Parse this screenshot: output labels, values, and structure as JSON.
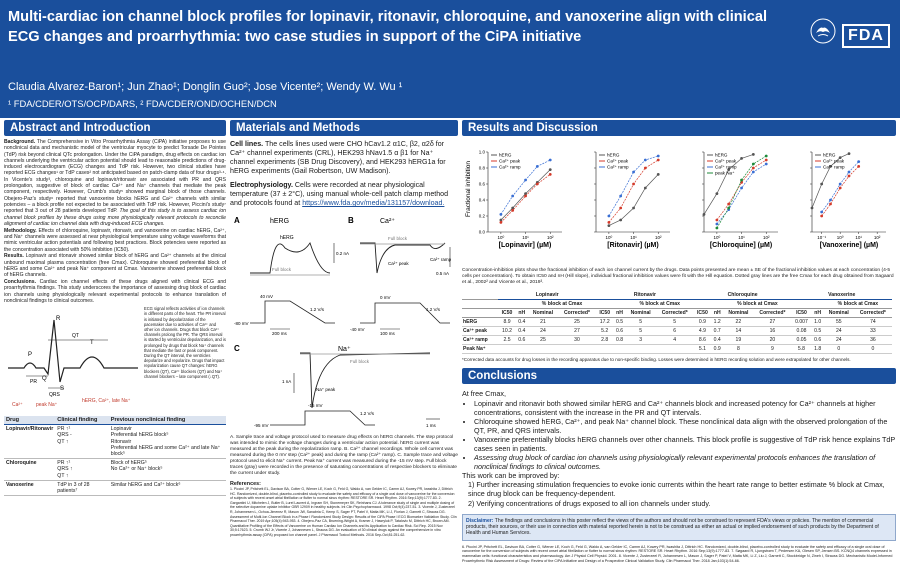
{
  "header": {
    "title": "Multi-cardiac ion channel block profiles for lopinavir, ritonavir, chloroquine, and vanoxerine align with clinical ECG changes and proarrhythmia: two case studies in support of the CiPA initiative",
    "authors": "Claudia Alvarez-Baron¹; Jun Zhao¹; Donglin Guo²; Jose Vicente²; Wendy W. Wu ¹",
    "affiliations": "¹ FDA/CDER/OTS/OCP/DARS, ² FDA/CDER/OND/OCHEN/DCN",
    "logo_text": "FDA",
    "colors": {
      "header_bg": "#1a4f9c",
      "accent": "#1a4f9c"
    }
  },
  "abstract": {
    "heading": "Abstract and Introduction",
    "background_label": "Background.",
    "background": "The Comprehensive in Vitro Proarrhythmia Assay (CiPA) initiative proposes to use nonclinical data and mechanistic model of the ventricular myocyte to predict Torsade De Pointes (TdP) risk beyond clinical QTc prolongation. Under the CiPA paradigm, drug effects on cardiac ion channels underlying the ventricular action potential should lead to reasonable predictions of drug-induced electrocardiogram (ECG) changes and TdP risk. However, two clinical studies have reported ECG changes¹ or TdP cases² not anticipated based on patch-clamp data of four drugs³·⁴. In Vicente's study³, chloroquine and lopinavir/ritonavir are associated with PR and QRS prolongation, suggestive of block of cardiac Ca²⁺ and Na⁺ channels that mediate the peak component, respectively. However, Crumb's study⁵ showed marginal block of those channels. Obejero-Paz's study⁶ reported that vanoxerine blocks hERG and Ca²⁺ channels with similar potencies – a block profile not expected to be associated with TdP risk. However, Piccini's study⁷ reported that 3 out of 28 patients developed TdP.",
    "goal": "The goal of this study is to assess cardiac ion channel block profiles by these drugs using more physiologically relevant protocols to reconcile alignment of cardiac ion channel data with drug-induced ECG changes.",
    "methodology_label": "Methodology.",
    "methodology": "Effects of chloroquine, lopinavir, ritonavir, and vanoxerine on cardiac hERG, Ca²⁺, and Na⁺ channels were assessed at near physiological temperature using voltage waveforms that mimic ventricular action potentials and following best practices. Block potencies were reported as the concentration associated with 50% inhibition (IC50).",
    "results_label": "Results.",
    "results": "Lopinavir and ritonavir showed similar block of hERG and Ca²⁺ channels at the clinical unbound maximal plasma concentration (free Cmax). Chloroquine showed preferential block of hERG and some Ca²⁺ and peak Na⁺ component at Cmax. Vanoxerine showed preferential block of hERG channels.",
    "conclusions_label": "Conclusions.",
    "conclusions": "Cardiac ion channel effects of these drugs aligned with clinical ECG and proarrhythmia findings. This study underscores the importance of assessing drug block of cardiac ion channels using physiologically relevant experimental protocols to enhance translation of nonclinical findings to clinical outcomes.",
    "ecg_description": "ECG signal reflects activities of ion channels in different parts of the heart. The PR interval is initiated by depolarization of the pacemaker due to activities of Ca²⁺ and other ion channels. Drugs that block Ca²⁺ channels prolong the PR. The QRS interval is started by ventricular depolarization, and is prolonged by drugs that block Na⁺ channels that mediate the fast or peak component. During the QT interval, the ventricles depolarize and repolarize. Drugs that impact repolarization cause QT changes: hERG blockers (QT), Ca²⁺ blockers (QT) and Na⁺ channel blockers – late component (↓QT).",
    "ecg_labels": {
      "P": "P",
      "R": "R",
      "Q": "Q",
      "S": "S",
      "T": "T",
      "PR": "PR",
      "QRS": "QRS",
      "QT": "QT",
      "ca": "Ca²⁺",
      "peak_na": "peak Na⁺",
      "herg": "hERG, Ca²⁺, late Na⁺"
    }
  },
  "drug_table": {
    "headers": [
      "Drug",
      "Clinical finding",
      "Previous nonclinical finding"
    ],
    "rows": [
      {
        "drug": "Lopinavir/Ritonavir",
        "clinical": "PR ↑¹\nQRS -\nQT ↑",
        "previous": "Lopinavir\nPreferential hERG block⁵\nRitonavir\nPreferential hERG and some Ca²⁺ and late Na⁺ block⁵"
      },
      {
        "drug": "Chloroquine",
        "clinical": "PR ↑¹\nQRS ↑\nQT ↑",
        "previous": "Block of hERG⁵\nNo Ca²⁺ or Na⁺ block⁵"
      },
      {
        "drug": "Vanoxerine",
        "clinical": "TdP in 3 of 28 patients⁷",
        "previous": "Similar hERG and Ca²⁺ block⁶"
      }
    ]
  },
  "methods": {
    "heading": "Materials and Methods",
    "cell_lines_label": "Cell lines.",
    "cell_lines": "The cells lines used were CHO hCav1.2 α1C, β2, α2δ for Ca²⁺ channel experiments (CRL), HEK293 hNav1.5 α β1 for Na⁺ channel experiments (SB Drug Discovery), and HEK293 hERG1a for hERG experiments (Gail Robertson, UW Madison).",
    "ephys_label": "Electrophysiology.",
    "ephys": "Cells were recorded at near physiological temperature (37 ± 2°C), using manual whole-cell patch clamp method and protocols found at",
    "link": "https://www.fda.gov/media/131157/download.",
    "panel_labels": {
      "a": "A",
      "b": "B",
      "c": "C",
      "herg": "hERG",
      "ca": "Ca²⁺",
      "na": "Na⁺",
      "full_block": "Full block",
      "ca_peak": "Ca²⁺ peak",
      "ca_ramp": "Ca²⁺ ramp",
      "na_peak": "Na⁺ peak"
    },
    "scale_labels": {
      "v_minus80": "-80 mV",
      "v40": "40 mV",
      "v0": "0 mV",
      "v_minus40": "-40 mV",
      "v_minus95": "-95 mV",
      "v_minus15": "-15 mV",
      "slope": "1.2 V/s",
      "na_slope": "1.2 V/s",
      "t100": "100 ms",
      "t200": "200 ms",
      "t1": "1 ms",
      "i1": "0.2 nA",
      "i2": "0.5 nA",
      "i3": "1 nA"
    },
    "caption": "A. Sample trace and voltage protocol used to measure drug effects on hERG channels. The step protocol was intended to mimic the voltage changes during a ventricular action potential. hERG current was measured at the peak during the repolarization ramp. B. Ca²⁺ channel recordings. Whole cell current was measured during the 0 mV step (Ca²⁺ peak) and during the ramp (Ca²⁺ ramp). C. Sample trace and voltage protocol used to elicit Na⁺ current. Peak Na⁺ current was measured during the -15 mV step. Full block traces (gray) were recorded in the presence of saturating concentrations of respective blockers to eliminate the current under study.",
    "refs_heading": "References:",
    "refs": "1. Piccini JP, Pritchett EL, Davison BA, Cotter G, Wiener LE, Koch G, Feld G, Waldo A, van Gelder IC, Camm AJ, Kowey PR, Iwashita J, Dittrich HC. Randomized, double-blind, placebo-controlled study to evaluate the safety and efficacy of a single oral dose of vanoxerine for the conversion of subjects with recent onset atrial fibrillation or flutter to normal sinus rhythm: RESTORE SR. Heart Rhythm. 2016 Sep;13(9):1777-83. 2. Gargantini U, Mitchelen J, Butler B, Lurel Laurent A, Ingram SH, Stonemeyer SK, Reinhans CJ. A tolerance study of single and multiple dosing of the selective dopamine uptake inhibitor GBR 12909 in healthy subjects. Int Clin Psychopharmacol. 1998 Oct;9(4):237-51. 3. Vicente J, Zusterzeel R, Johannesen L, Ochoa-Jimenez R, Mason JW, Sanabria C, Kemp S, Sager PT, Patel V, Matta MK, Li J, Florian J, Garnett C, Strauss DG. Assessment of Multi-Ion Channel Block in a Phase I Randomized Study Design: Results of the CiPA Phase I ECG Biomarker Validation Study. Clin Pharmacol Ther. 2019 Apr;105(4):943-953. 4. Obejero-Paz CA, Bruening-Wright A, Kramer J, Hawryluk P, Tatalovic M, Dittrich HC, Brown AM. Quantitative Profiling of the Effects of Vanoxerine on Human Cardiac Ion Channels and its Application to Cardiac Risk. Sci Rep. 2015 Nov 30;5:17623. 5. Crumb WJ Jr, Vicente J, Johannesen L, Strauss DG. An evaluation of 30 clinical drugs against the comprehensive in vitro proarrhythmia assay (CiPA) proposed ion channel panel. J Pharmacol Toxicol Methods. 2016 Sep-Oct;81:251-62."
  },
  "results": {
    "heading": "Results and Discussion",
    "y_label": "Fractional inhibition",
    "y_ticks": [
      "0.0",
      "0.2",
      "0.4",
      "0.6",
      "0.8",
      "1.0"
    ],
    "x_ticks": [
      "10⁰",
      "10¹",
      "10²",
      "10³"
    ],
    "x_ticks_vanox": [
      "10⁻²",
      "10⁻¹",
      "10⁰",
      "10¹",
      "10²"
    ],
    "x_labels": [
      "[Lopinavir] (µM)",
      "[Ritonavir] (µM)",
      "[Chloroquine] (µM)",
      "[Vanoxerine] (µM)"
    ],
    "legends": [
      [
        "hERG",
        "Ca²⁺ peak",
        "Ca²⁺ ramp"
      ],
      [
        "hERG",
        "Ca²⁺ peak",
        "Ca²⁺ ramp"
      ],
      [
        "hERG",
        "Ca²⁺ peak",
        "Ca²⁺ ramp",
        "peak Na⁺"
      ],
      [
        "hERG",
        "Ca²⁺ peak",
        "Ca²⁺ ramp"
      ]
    ],
    "series_colors": {
      "hERG": "#555555",
      "Ca²⁺ peak": "#d43a2a",
      "Ca²⁺ ramp": "#3a6fd4",
      "peak Na⁺": "#1e8a3a"
    },
    "caption": "Concentration-inhibition plots show the fractional inhibition of each ion channel current by the drugs. Data points presented are mean ± SE of the fractional inhibition values at each concentration (4-5 cells per concentration). To obtain IC50 and nH (Hill slope), individual fractional inhibition values were fit with the Hill equation. Dotted gray lines are the free Cmax for each drug obtained from Sagaard et al., 2002² and Vicente et al., 2019³.",
    "table": {
      "drugs": [
        "Lopinavir",
        "Ritonavir",
        "Chloroquine",
        "Vanoxerine"
      ],
      "sub_head": "% block at Cmax",
      "cols": [
        "IC50",
        "nH",
        "Nominal",
        "Corrected*"
      ],
      "rows": [
        {
          "label": "hERG",
          "cells": [
            "8.9",
            "0.4",
            "21",
            "25",
            "17.2",
            "0.5",
            "5",
            "5",
            "0.9",
            "1.2",
            "22",
            "27",
            "0.007",
            "1.0",
            "55",
            "74"
          ]
        },
        {
          "label": "Ca²⁺ peak",
          "cells": [
            "10.2",
            "0.4",
            "24",
            "27",
            "5.2",
            "0.6",
            "5",
            "6",
            "4.9",
            "0.7",
            "14",
            "16",
            "0.08",
            "0.5",
            "24",
            "33"
          ]
        },
        {
          "label": "Ca²⁺ ramp",
          "cells": [
            "2.5",
            "0.6",
            "25",
            "30",
            "2.8",
            "0.8",
            "3",
            "4",
            "8.6",
            "0.4",
            "19",
            "20",
            "0.05",
            "0.6",
            "24",
            "36"
          ]
        },
        {
          "label": "Peak Na⁺",
          "cells": [
            "",
            "",
            "",
            "",
            "",
            "",
            "",
            "",
            "5.1",
            "0.9",
            "8",
            "9",
            "5.8",
            "1.8",
            "0",
            "0"
          ]
        }
      ],
      "footnote": "*Corrected data accounts for drug losses in the recording apparatus due to non-specific binding. Losses were determined in hERG recording solution and were extrapolated for other channels."
    }
  },
  "chart_data": [
    {
      "type": "scatter",
      "title": "",
      "xlabel": "[Lopinavir] (µM)",
      "ylabel": "Fractional inhibition",
      "xscale": "log",
      "xlim": [
        0.3,
        300
      ],
      "ylim": [
        0,
        1
      ],
      "series": [
        {
          "name": "hERG",
          "x": [
            1,
            3,
            10,
            30,
            100
          ],
          "y": [
            0.15,
            0.3,
            0.48,
            0.62,
            0.78
          ]
        },
        {
          "name": "Ca²⁺ peak",
          "x": [
            1,
            3,
            10,
            30,
            100
          ],
          "y": [
            0.12,
            0.27,
            0.45,
            0.6,
            0.72
          ]
        },
        {
          "name": "Ca²⁺ ramp",
          "x": [
            1,
            3,
            10,
            30,
            100
          ],
          "y": [
            0.22,
            0.45,
            0.65,
            0.82,
            0.9
          ]
        }
      ]
    },
    {
      "type": "scatter",
      "title": "",
      "xlabel": "[Ritonavir] (µM)",
      "ylabel": "Fractional inhibition",
      "xscale": "log",
      "xlim": [
        0.3,
        300
      ],
      "ylim": [
        0,
        1
      ],
      "series": [
        {
          "name": "hERG",
          "x": [
            1,
            3,
            10,
            30,
            100
          ],
          "y": [
            0.08,
            0.15,
            0.3,
            0.55,
            0.72
          ]
        },
        {
          "name": "Ca²⁺ peak",
          "x": [
            1,
            3,
            10,
            30,
            100
          ],
          "y": [
            0.12,
            0.3,
            0.6,
            0.8,
            0.9
          ]
        },
        {
          "name": "Ca²⁺ ramp",
          "x": [
            1,
            3,
            10,
            30,
            100
          ],
          "y": [
            0.2,
            0.45,
            0.75,
            0.9,
            0.95
          ]
        }
      ]
    },
    {
      "type": "scatter",
      "title": "",
      "xlabel": "[Chloroquine] (µM)",
      "ylabel": "Fractional inhibition",
      "xscale": "log",
      "xlim": [
        0.3,
        300
      ],
      "ylim": [
        0,
        1
      ],
      "series": [
        {
          "name": "hERG",
          "x": [
            0.3,
            1,
            3,
            10,
            30
          ],
          "y": [
            0.22,
            0.48,
            0.78,
            0.92,
            0.97
          ]
        },
        {
          "name": "Ca²⁺ peak",
          "x": [
            1,
            3,
            10,
            30,
            100
          ],
          "y": [
            0.15,
            0.35,
            0.62,
            0.8,
            0.9
          ]
        },
        {
          "name": "Ca²⁺ ramp",
          "x": [
            1,
            3,
            10,
            30,
            100
          ],
          "y": [
            0.1,
            0.28,
            0.55,
            0.75,
            0.85
          ]
        },
        {
          "name": "peak Na⁺",
          "x": [
            1,
            3,
            10,
            30,
            100
          ],
          "y": [
            0.05,
            0.3,
            0.65,
            0.85,
            0.95
          ]
        }
      ]
    },
    {
      "type": "scatter",
      "title": "",
      "xlabel": "[Vanoxerine] (µM)",
      "ylabel": "Fractional inhibition",
      "xscale": "log",
      "xlim": [
        0.003,
        30
      ],
      "ylim": [
        0,
        1
      ],
      "series": [
        {
          "name": "hERG",
          "x": [
            0.003,
            0.01,
            0.03,
            0.1,
            0.3
          ],
          "y": [
            0.3,
            0.6,
            0.82,
            0.93,
            0.98
          ]
        },
        {
          "name": "Ca²⁺ peak",
          "x": [
            0.01,
            0.03,
            0.1,
            0.3,
            1
          ],
          "y": [
            0.2,
            0.35,
            0.55,
            0.7,
            0.82
          ]
        },
        {
          "name": "Ca²⁺ ramp",
          "x": [
            0.01,
            0.03,
            0.1,
            0.3,
            1
          ],
          "y": [
            0.25,
            0.4,
            0.6,
            0.75,
            0.88
          ]
        }
      ]
    }
  ],
  "conclusions": {
    "heading": "Conclusions",
    "intro": "At free Cmax,",
    "bullets": [
      "Lopinavir and ritonavir both showed similar hERG and Ca²⁺ channels block and increased potency for Ca²⁺ channels at higher concentrations, consistent with the increase in the PR and QT intervals.",
      "Chloroquine showed hERG, Ca²⁺, and peak Na⁺ channel block. These nonclinical data align with the observed prolongation of the QT, PR, and QRS intervals.",
      "Vanoxerine preferentially blocks hERG channels over other channels. This block profile is suggestive of TdP risk hence explains TdP cases seen in patients.",
      "Assessing drug block of cardiac ion channels using physiologically relevant experimental protocols enhances the translation of nonclinical findings to clinical outcomes."
    ],
    "improve": "This work can be improved by:",
    "improve_items": [
      "1) Further increasing stimulation frequencies to evoke ionic currents within the heart rate range to better estimate % block at Cmax, since drug block can be frequency-dependent.",
      "2) Verifying concentrations of drugs exposed to all ion channels under study."
    ],
    "disclaimer_label": "Disclaimer:",
    "disclaimer": "The findings and conclusions in this poster reflect the views of the authors and should not be construed to represent FDA's views or policies. The mention of commercial products, their sources, or their use in connection with material reported herein is not to be construed as either an actual or implied endorsement of such products by the Department of Health and Human Services.",
    "refs": "6. Piccini JP, Pritchett EL, Davison BA, Cotter G, Wiener LE, Koch G, Feld G, Waldo A, van Gelder IC, Camm AJ, Kowey PR, Iwashita J, Dittrich HC. Randomized, double-blind, placebo-controlled study to evaluate the safety and efficacy of a single oral dose of vanoxerine for the conversion of subjects with recent onset atrial fibrillation or flutter to normal sinus rhythm: RESTORE SR. Heart Rhythm. 2016 Sep;13(9):1777-83. 7. Søgaard R, Ljungstrøm T, Pedersen KA, Olesen SP, Jensen BS. KCNQ4 channels expressed in mammalian cells: functional characteristics and pharmacology. Am J Physiol Cell Physiol. 2001. 8. Vicente J, Zusterzeel R, Johannesen L, Mason J, Sager P, Patel V, Matta MK, Li Z, Liu J, Garnett C, Stockbridge N, Zineh I, Strauss DG. Mechanistic Model-Informed Proarrhythmic Risk Assessment of Drugs: Review of the CiPA Initiative and Design of a Prospective Clinical Validation Study. Clin Pharmacol Ther. 2018 Jan;103(1):54-66."
  }
}
